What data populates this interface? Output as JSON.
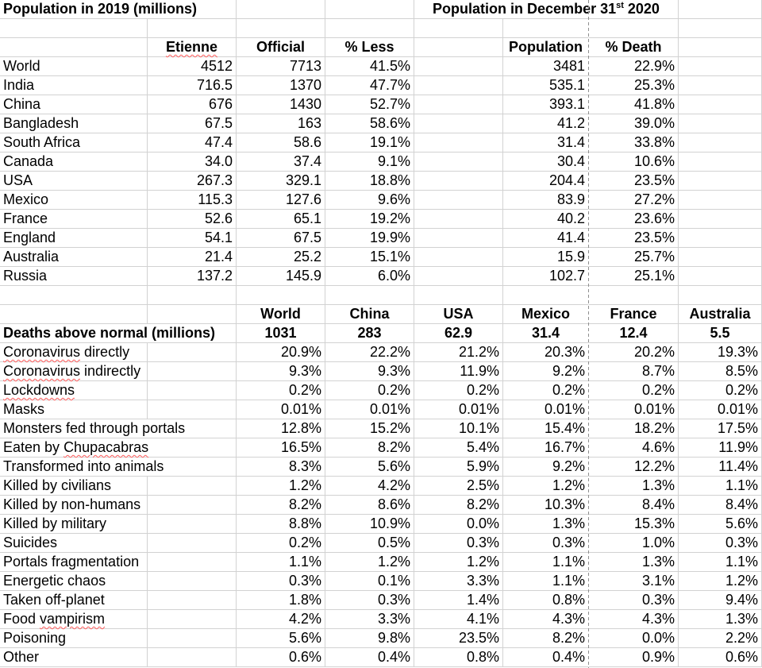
{
  "titles": {
    "left": "Population in 2019 (millions)",
    "right_prefix": "Population in December 31",
    "right_superscript": "st",
    "right_suffix": " 2020"
  },
  "colors": {
    "gridline": "#d2d2d2",
    "spellcheck_underline": "#ff5c5c",
    "page_break_line": "#8f8f8f",
    "text": "#000000"
  },
  "population_table": {
    "column_headers": {
      "etienne": "Etienne",
      "official": "Official",
      "pct_less": "% Less",
      "population": "Population",
      "pct_death": "% Death"
    },
    "rows": [
      {
        "country": "World",
        "etienne": "4512",
        "official": "7713",
        "pct_less": "41.5%",
        "population": "3481",
        "pct_death": "22.9%"
      },
      {
        "country": "India",
        "etienne": "716.5",
        "official": "1370",
        "pct_less": "47.7%",
        "population": "535.1",
        "pct_death": "25.3%"
      },
      {
        "country": "China",
        "etienne": "676",
        "official": "1430",
        "pct_less": "52.7%",
        "population": "393.1",
        "pct_death": "41.8%"
      },
      {
        "country": "Bangladesh",
        "etienne": "67.5",
        "official": "163",
        "pct_less": "58.6%",
        "population": "41.2",
        "pct_death": "39.0%"
      },
      {
        "country": "South Africa",
        "etienne": "47.4",
        "official": "58.6",
        "pct_less": "19.1%",
        "population": "31.4",
        "pct_death": "33.8%"
      },
      {
        "country": "Canada",
        "etienne": "34.0",
        "official": "37.4",
        "pct_less": "9.1%",
        "population": "30.4",
        "pct_death": "10.6%"
      },
      {
        "country": "USA",
        "etienne": "267.3",
        "official": "329.1",
        "pct_less": "18.8%",
        "population": "204.4",
        "pct_death": "23.5%"
      },
      {
        "country": "Mexico",
        "etienne": "115.3",
        "official": "127.6",
        "pct_less": "9.6%",
        "population": "83.9",
        "pct_death": "27.2%"
      },
      {
        "country": "France",
        "etienne": "52.6",
        "official": "65.1",
        "pct_less": "19.2%",
        "population": "40.2",
        "pct_death": "23.6%"
      },
      {
        "country": "England",
        "etienne": "54.1",
        "official": "67.5",
        "pct_less": "19.9%",
        "population": "41.4",
        "pct_death": "23.5%"
      },
      {
        "country": "Australia",
        "etienne": "21.4",
        "official": "25.2",
        "pct_less": "15.1%",
        "population": "15.9",
        "pct_death": "25.7%"
      },
      {
        "country": "Russia",
        "etienne": "137.2",
        "official": "145.9",
        "pct_less": "6.0%",
        "population": "102.7",
        "pct_death": "25.1%"
      }
    ]
  },
  "deaths_table": {
    "row_header": "Deaths above normal (millions)",
    "column_headers": [
      "World",
      "China",
      "USA",
      "Mexico",
      "France",
      "Australia"
    ],
    "totals": [
      "1031",
      "283",
      "62.9",
      "31.4",
      "12.4",
      "5.5"
    ],
    "rows": [
      {
        "pre": "",
        "mis": "Coronavirus",
        "post": " directly",
        "values": [
          "20.9%",
          "22.2%",
          "21.2%",
          "20.3%",
          "20.2%",
          "19.3%"
        ]
      },
      {
        "pre": "",
        "mis": "Coronavirus",
        "post": " indirectly",
        "values": [
          "9.3%",
          "9.3%",
          "11.9%",
          "9.2%",
          "8.7%",
          "8.5%"
        ]
      },
      {
        "pre": "",
        "mis": "Lockdowns",
        "post": "",
        "values": [
          "0.2%",
          "0.2%",
          "0.2%",
          "0.2%",
          "0.2%",
          "0.2%"
        ]
      },
      {
        "pre": "Masks",
        "mis": "",
        "post": "",
        "values": [
          "0.01%",
          "0.01%",
          "0.01%",
          "0.01%",
          "0.01%",
          "0.01%"
        ]
      },
      {
        "pre": "Monsters fed through portals",
        "mis": "",
        "post": "",
        "values": [
          "12.8%",
          "15.2%",
          "10.1%",
          "15.4%",
          "18.2%",
          "17.5%"
        ]
      },
      {
        "pre": "Eaten by ",
        "mis": "Chupacabras",
        "post": "",
        "values": [
          "16.5%",
          "8.2%",
          "5.4%",
          "16.7%",
          "4.6%",
          "11.9%"
        ]
      },
      {
        "pre": "Transformed into animals",
        "mis": "",
        "post": "",
        "values": [
          "8.3%",
          "5.6%",
          "5.9%",
          "9.2%",
          "12.2%",
          "11.4%"
        ]
      },
      {
        "pre": "Killed by civilians",
        "mis": "",
        "post": "",
        "values": [
          "1.2%",
          "4.2%",
          "2.5%",
          "1.2%",
          "1.3%",
          "1.1%"
        ]
      },
      {
        "pre": "Killed by non-humans",
        "mis": "",
        "post": "",
        "values": [
          "8.2%",
          "8.6%",
          "8.2%",
          "10.3%",
          "8.4%",
          "8.4%"
        ]
      },
      {
        "pre": "Killed by military",
        "mis": "",
        "post": "",
        "values": [
          "8.8%",
          "10.9%",
          "0.0%",
          "1.3%",
          "15.3%",
          "5.6%"
        ]
      },
      {
        "pre": "Suicides",
        "mis": "",
        "post": "",
        "values": [
          "0.2%",
          "0.5%",
          "0.3%",
          "0.3%",
          "1.0%",
          "0.3%"
        ]
      },
      {
        "pre": "Portals fragmentation",
        "mis": "",
        "post": "",
        "values": [
          "1.1%",
          "1.2%",
          "1.2%",
          "1.1%",
          "1.3%",
          "1.1%"
        ]
      },
      {
        "pre": "Energetic chaos",
        "mis": "",
        "post": "",
        "values": [
          "0.3%",
          "0.1%",
          "3.3%",
          "1.1%",
          "3.1%",
          "1.2%"
        ]
      },
      {
        "pre": "Taken off-planet",
        "mis": "",
        "post": "",
        "values": [
          "1.8%",
          "0.3%",
          "1.4%",
          "0.8%",
          "0.3%",
          "9.4%"
        ]
      },
      {
        "pre": "Food ",
        "mis": "vampirism",
        "post": "",
        "values": [
          "4.2%",
          "3.3%",
          "4.1%",
          "4.3%",
          "4.3%",
          "1.3%"
        ]
      },
      {
        "pre": "Poisoning",
        "mis": "",
        "post": "",
        "values": [
          "5.6%",
          "9.8%",
          "23.5%",
          "8.2%",
          "0.0%",
          "2.2%"
        ]
      },
      {
        "pre": "Other",
        "mis": "",
        "post": "",
        "values": [
          "0.6%",
          "0.4%",
          "0.8%",
          "0.4%",
          "0.9%",
          "0.6%"
        ]
      }
    ]
  }
}
